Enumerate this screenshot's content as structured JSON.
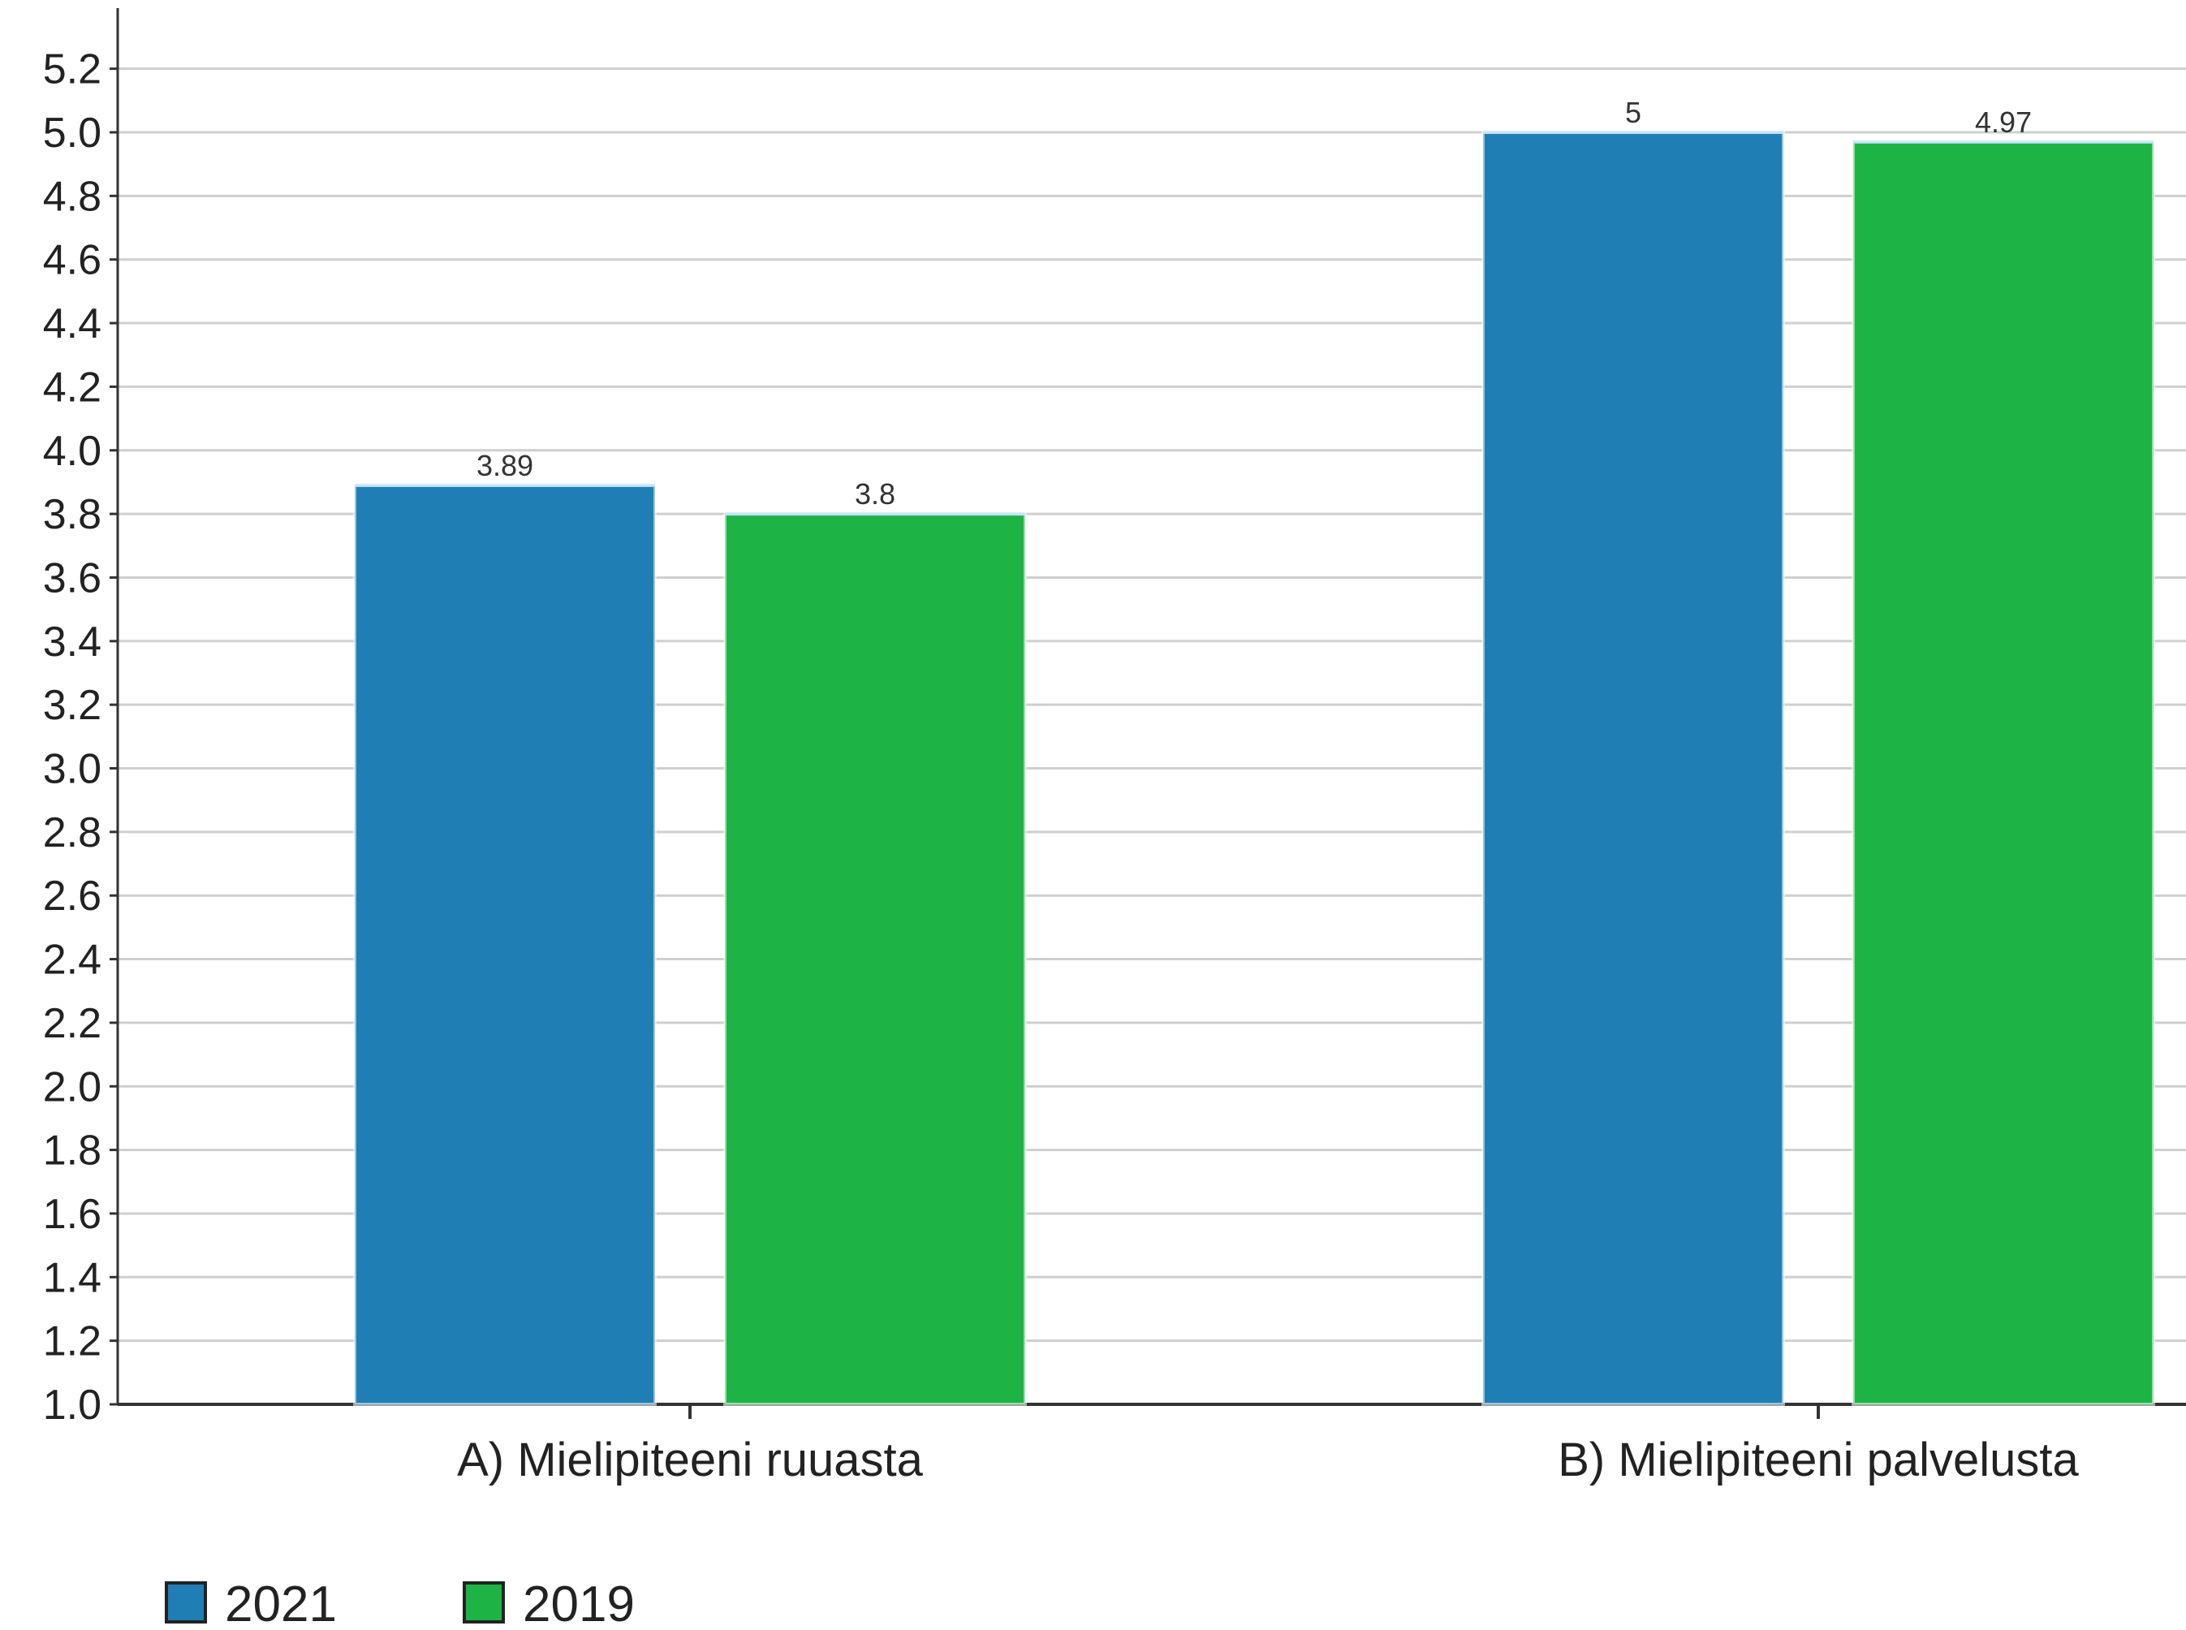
{
  "chart_data": {
    "type": "bar",
    "title": "",
    "xlabel": "",
    "ylabel": "",
    "ylim": [
      1.0,
      5.4
    ],
    "yticks": [
      1.0,
      1.2,
      1.4,
      1.6,
      1.8,
      2.0,
      2.2,
      2.4,
      2.6,
      2.8,
      3.0,
      3.2,
      3.4,
      3.6,
      3.8,
      4.0,
      4.2,
      4.4,
      4.6,
      4.8,
      5.0,
      5.2
    ],
    "ytick_labels": [
      "1.0",
      "1.2",
      "1.4",
      "1.6",
      "1.8",
      "2.0",
      "2.2",
      "2.4",
      "2.6",
      "2.8",
      "3.0",
      "3.2",
      "3.4",
      "3.6",
      "3.8",
      "4.0",
      "4.2",
      "4.4",
      "4.6",
      "4.8",
      "5.0",
      "5.2"
    ],
    "grid": true,
    "legend_position": "bottom-left",
    "categories": [
      "A) Mielipiteeni ruuasta",
      "B) Mielipiteeni palvelusta"
    ],
    "series": [
      {
        "name": "2021",
        "values": [
          3.89,
          5
        ],
        "value_labels": [
          "3.89",
          "5"
        ],
        "color": "#1f7eb4"
      },
      {
        "name": "2019",
        "values": [
          3.8,
          4.97
        ],
        "value_labels": [
          "3.8",
          "4.97"
        ],
        "color": "#1db345"
      }
    ]
  }
}
